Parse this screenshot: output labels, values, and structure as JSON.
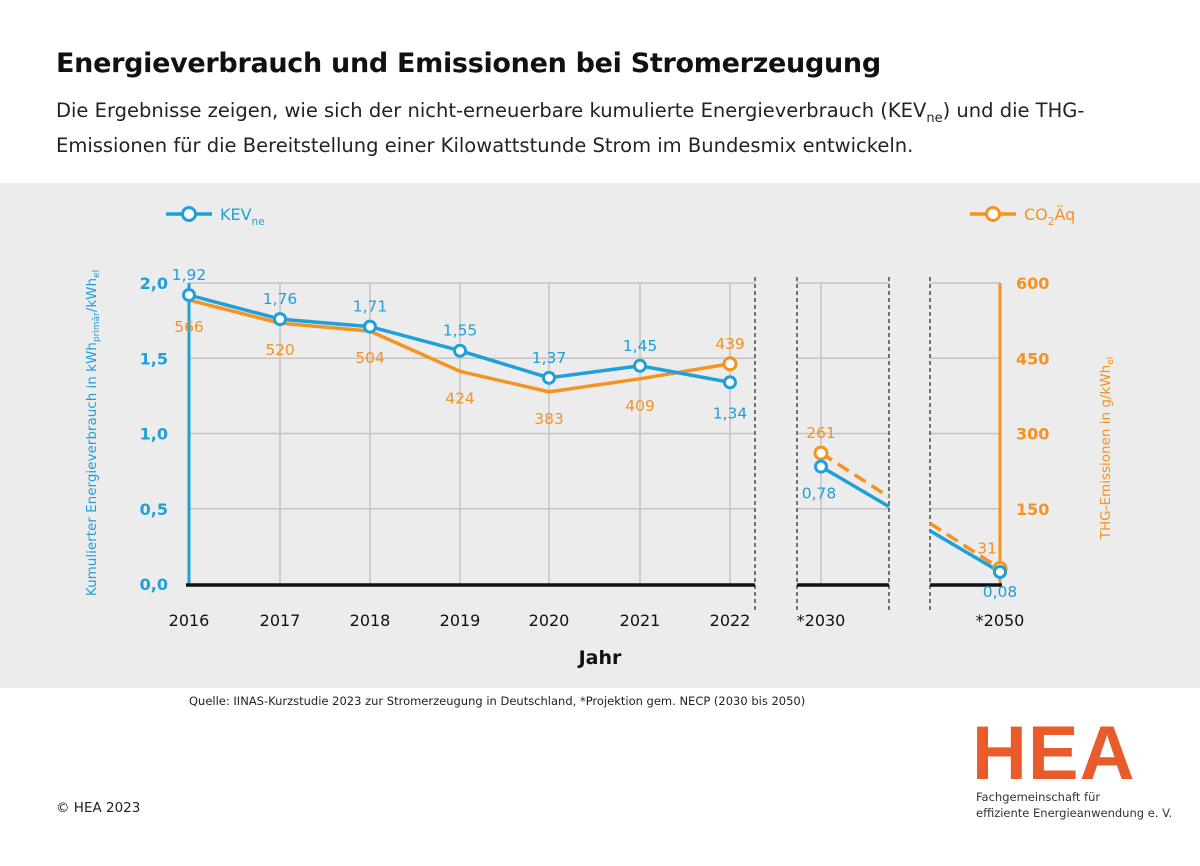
{
  "header": {
    "title": "Energieverbrauch und Emissionen bei Stromerzeugung",
    "subtitle_part1": "Die Ergebnisse zeigen, wie sich der nicht-erneuerbare kumulierte Energieverbrauch (KEV",
    "subtitle_sub": "ne",
    "subtitle_part2": ") und die THG-Emissionen für die Bereitstellung einer Kilowattstunde Strom im Bundesmix entwickeln."
  },
  "chart_data": {
    "type": "line",
    "xlabel": "Jahr",
    "categories": [
      "2016",
      "2017",
      "2018",
      "2019",
      "2020",
      "2021",
      "2022",
      "*2030",
      "*2050"
    ],
    "ylabel_left": "Kumulierter Energieverbrauch in kWh primär/kWh el",
    "ylabel_left_parts": {
      "main": "Kumulierter Energieverbrauch in kWh",
      "sub1": "primär",
      "mid": "/kWh",
      "sub2": "el"
    },
    "ylabel_right": "THG-Emissionen in g/kWh el",
    "ylabel_right_parts": {
      "main": "THG-Emissionen in g/kWh",
      "sub": "el"
    },
    "ylim_left": [
      0,
      2
    ],
    "ylim_right": [
      0,
      600
    ],
    "yticks_left": [
      "0,0",
      "0,5",
      "1,0",
      "1,5",
      "2,0"
    ],
    "yticks_right": [
      "150",
      "300",
      "450",
      "600"
    ],
    "grid": true,
    "legend_position": "top",
    "series": [
      {
        "name": "KEV ne",
        "legend_main": "KEV",
        "legend_sub": "ne",
        "axis": "left",
        "color": "#1fa0d8",
        "values": [
          1.92,
          1.76,
          1.71,
          1.55,
          1.37,
          1.45,
          1.34,
          0.78,
          0.08
        ],
        "labels": [
          "1,92",
          "1,76",
          "1,71",
          "1,55",
          "1,37",
          "1,45",
          "1,34",
          "0,78",
          "0,08"
        ]
      },
      {
        "name": "CO2Äq",
        "legend_main": "CO",
        "legend_sub": "2",
        "legend_tail": "Äq",
        "axis": "right",
        "color": "#f39322",
        "values": [
          566,
          520,
          504,
          424,
          383,
          409,
          439,
          261,
          31
        ],
        "labels": [
          "566",
          "520",
          "504",
          "424",
          "383",
          "409",
          "439",
          "261",
          "31"
        ]
      }
    ]
  },
  "footer": {
    "source": "Quelle: IINAS-Kurzstudie 2023 zur Stromerzeugung in Deutschland, *Projektion gem. NECP (2030 bis 2050)",
    "copyright": "© HEA 2023",
    "logo_text": "HEA",
    "tagline_line1": "Fachgemeinschaft für",
    "tagline_line2": "effiziente Energieanwendung e. V."
  },
  "colors": {
    "kev": "#1fa0d8",
    "co2": "#f39322",
    "panel": "#ececec",
    "logo": "#ea5b2c"
  }
}
